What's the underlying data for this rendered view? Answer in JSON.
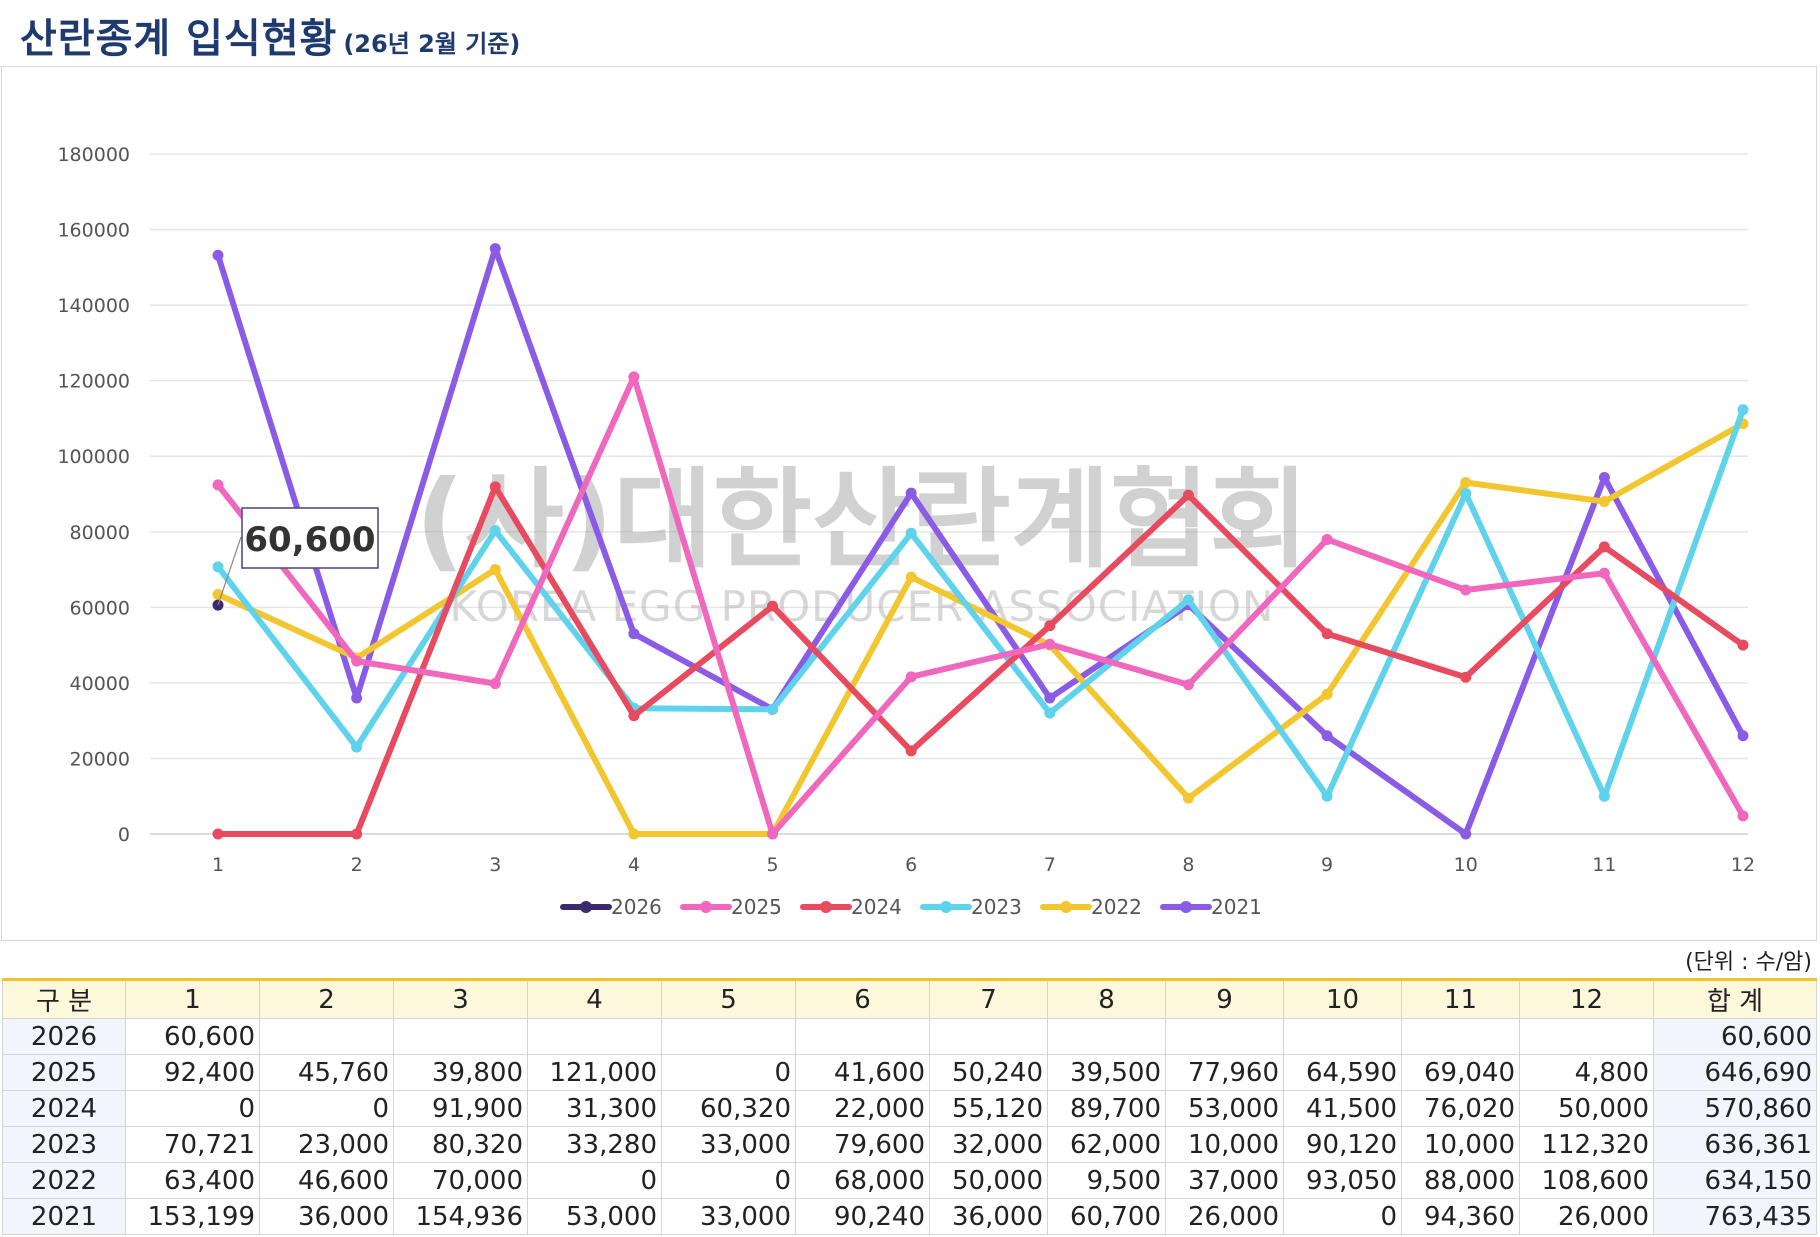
{
  "header": {
    "title": "산란종계 입식현황",
    "subtitle": "(26년 2월 기준)"
  },
  "watermark": {
    "main": "(사)대한산란계협회",
    "sub": "KOREA EGG PRODUCER ASSOCIATION"
  },
  "callout": {
    "label": "60,600",
    "series": "2026",
    "x": 1
  },
  "unit_label": "(단위 : 수/암)",
  "chart_data": {
    "type": "line",
    "title": "",
    "xlabel": "",
    "ylabel": "",
    "x": [
      "1",
      "2",
      "3",
      "4",
      "5",
      "6",
      "7",
      "8",
      "9",
      "10",
      "11",
      "12"
    ],
    "ylim": [
      0,
      180000
    ],
    "yticks": [
      0,
      20000,
      40000,
      60000,
      80000,
      100000,
      120000,
      140000,
      160000,
      180000
    ],
    "grid": true,
    "legend_position": "bottom",
    "series": [
      {
        "name": "2026",
        "color": "#3b2a6e",
        "values": [
          60600,
          null,
          null,
          null,
          null,
          null,
          null,
          null,
          null,
          null,
          null,
          null
        ]
      },
      {
        "name": "2025",
        "color": "#f067be",
        "values": [
          92400,
          45760,
          39800,
          121000,
          0,
          41600,
          50240,
          39500,
          77960,
          64590,
          69040,
          4800
        ]
      },
      {
        "name": "2024",
        "color": "#e84a5f",
        "values": [
          0,
          0,
          91900,
          31300,
          60320,
          22000,
          55120,
          89700,
          53000,
          41500,
          76020,
          50000
        ]
      },
      {
        "name": "2023",
        "color": "#5fd3ec",
        "values": [
          70721,
          23000,
          80320,
          33280,
          33000,
          79600,
          32000,
          62000,
          10000,
          90120,
          10000,
          112320
        ]
      },
      {
        "name": "2022",
        "color": "#f2c62f",
        "values": [
          63400,
          46600,
          70000,
          0,
          0,
          68000,
          50000,
          9500,
          37000,
          93050,
          88000,
          108600
        ]
      },
      {
        "name": "2021",
        "color": "#8a5ce6",
        "values": [
          153199,
          36000,
          154936,
          53000,
          33000,
          90240,
          36000,
          60700,
          26000,
          0,
          94360,
          26000
        ]
      }
    ]
  },
  "table": {
    "headers": [
      "구 분",
      "1",
      "2",
      "3",
      "4",
      "5",
      "6",
      "7",
      "8",
      "9",
      "10",
      "11",
      "12",
      "합 계"
    ],
    "rows": [
      [
        "2026",
        "60,600",
        "",
        "",
        "",
        "",
        "",
        "",
        "",
        "",
        "",
        "",
        "",
        "60,600"
      ],
      [
        "2025",
        "92,400",
        "45,760",
        "39,800",
        "121,000",
        "0",
        "41,600",
        "50,240",
        "39,500",
        "77,960",
        "64,590",
        "69,040",
        "4,800",
        "646,690"
      ],
      [
        "2024",
        "0",
        "0",
        "91,900",
        "31,300",
        "60,320",
        "22,000",
        "55,120",
        "89,700",
        "53,000",
        "41,500",
        "76,020",
        "50,000",
        "570,860"
      ],
      [
        "2023",
        "70,721",
        "23,000",
        "80,320",
        "33,280",
        "33,000",
        "79,600",
        "32,000",
        "62,000",
        "10,000",
        "90,120",
        "10,000",
        "112,320",
        "636,361"
      ],
      [
        "2022",
        "63,400",
        "46,600",
        "70,000",
        "0",
        "0",
        "68,000",
        "50,000",
        "9,500",
        "37,000",
        "93,050",
        "88,000",
        "108,600",
        "634,150"
      ],
      [
        "2021",
        "153,199",
        "36,000",
        "154,936",
        "53,000",
        "33,000",
        "90,240",
        "36,000",
        "60,700",
        "26,000",
        "0",
        "94,360",
        "26,000",
        "763,435"
      ]
    ]
  }
}
